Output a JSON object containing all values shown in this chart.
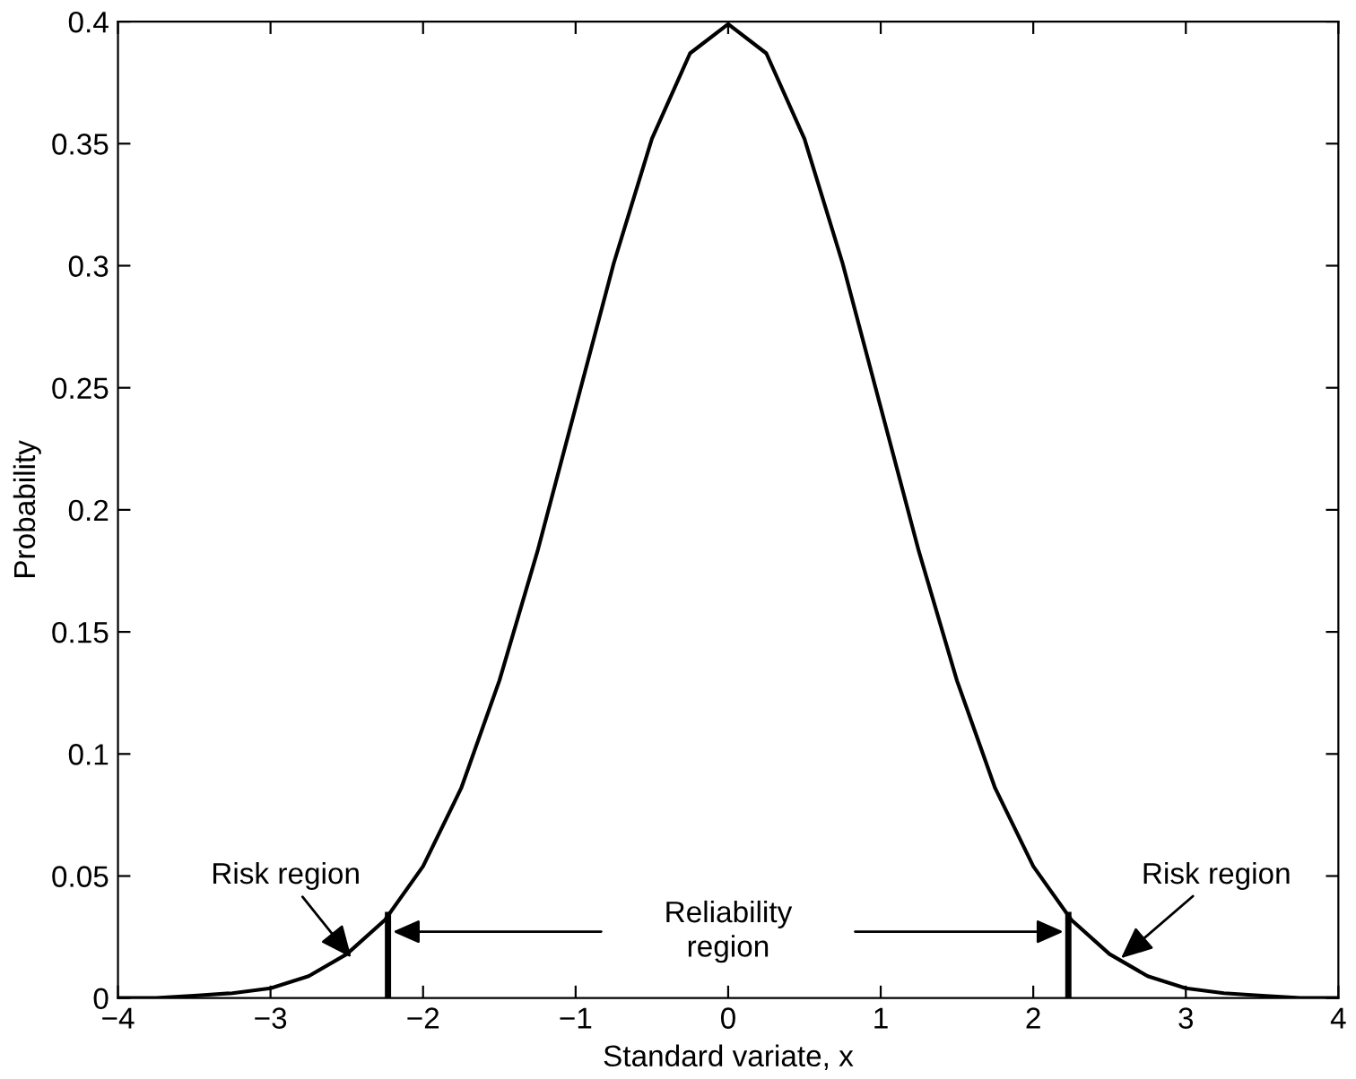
{
  "chart_data": {
    "type": "line",
    "xlabel": "Standard variate, x",
    "ylabel": "Probability",
    "xlim": [
      -4,
      4
    ],
    "ylim": [
      0,
      0.4
    ],
    "xticks": [
      {
        "value": -4,
        "label": "−4"
      },
      {
        "value": -3,
        "label": "−3"
      },
      {
        "value": -2,
        "label": "−2"
      },
      {
        "value": -1,
        "label": "−1"
      },
      0,
      1,
      2,
      3,
      4
    ],
    "yticks": [
      0,
      0.05,
      0.1,
      0.15,
      0.2,
      0.25,
      0.3,
      0.35,
      0.4
    ],
    "marker": "none",
    "line_style": "solid",
    "series": [
      {
        "color": "#000000",
        "x": [
          -4,
          -3.75,
          -3.5,
          -3.25,
          -3,
          -2.75,
          -2.5,
          -2.25,
          -2,
          -1.75,
          -1.5,
          -1.25,
          -1,
          -0.75,
          -0.5,
          -0.25,
          0,
          0.25,
          0.5,
          0.75,
          1,
          1.25,
          1.5,
          1.75,
          2,
          2.25,
          2.5,
          2.75,
          3,
          3.25,
          3.5,
          3.75,
          4
        ],
        "values": [
          0.0,
          0.0,
          0.001,
          0.002,
          0.004,
          0.009,
          0.018,
          0.032,
          0.054,
          0.086,
          0.13,
          0.183,
          0.242,
          0.301,
          0.352,
          0.387,
          0.399,
          0.387,
          0.352,
          0.301,
          0.242,
          0.183,
          0.13,
          0.086,
          0.054,
          0.032,
          0.018,
          0.009,
          0.004,
          0.002,
          0.001,
          0.0,
          0.0
        ]
      },
      {
        "color": "#000000",
        "x": [
          -2.23,
          -2.23
        ],
        "values": [
          0,
          0.034
        ]
      },
      {
        "color": "#000000",
        "x": [
          2.23,
          2.23
        ],
        "values": [
          0,
          0.034
        ]
      }
    ],
    "annotations": [
      {
        "text": "Risk region",
        "x": -2.45,
        "y": 0.015
      },
      "Reliability\nregion",
      {
        "text": "Risk region",
        "x": 2.55,
        "y": 0.015
      }
    ]
  }
}
